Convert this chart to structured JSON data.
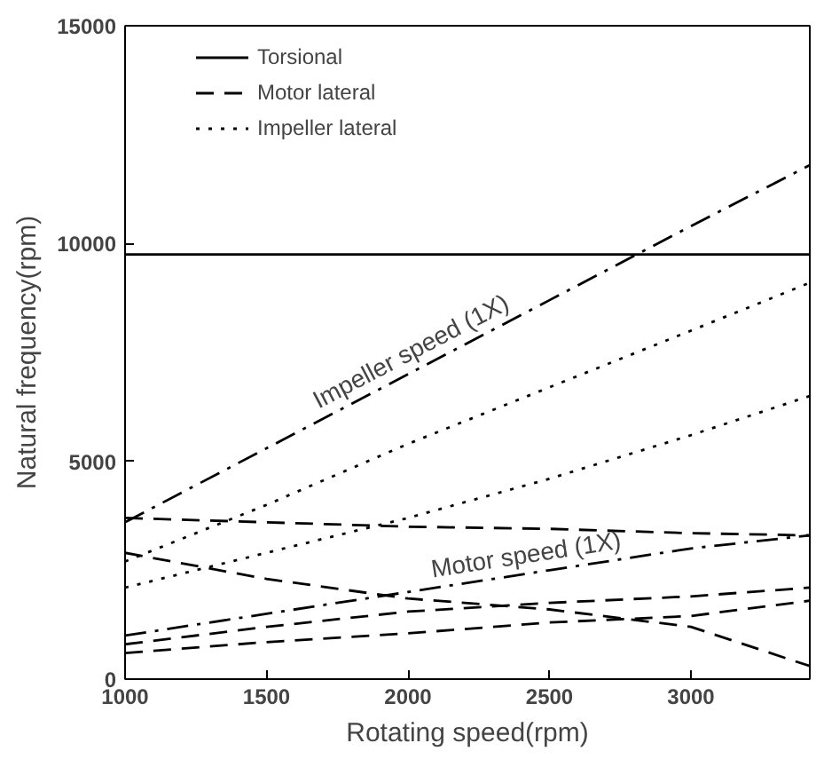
{
  "chart_data": {
    "type": "line",
    "xlabel": "Rotating speed(rpm)",
    "ylabel": "Natural frequency(rpm)",
    "x": [
      1000,
      1500,
      2000,
      2500,
      3000,
      3420
    ],
    "xlim": [
      1000,
      3420
    ],
    "ylim": [
      0,
      15000
    ],
    "xticks": [
      1000,
      1500,
      2000,
      2500,
      3000
    ],
    "yticks": [
      0,
      5000,
      10000,
      15000
    ],
    "grid": false,
    "legend": "top left",
    "marker": "none",
    "series": [
      {
        "name": "Torsional",
        "color": "#000000",
        "line_style": "solid",
        "values": [
          9750,
          9750,
          9750,
          9750,
          9750,
          9750
        ]
      },
      {
        "name": "Motor lateral",
        "color": "#000000",
        "line_style": "dashed",
        "values": [
          3700,
          3600,
          3500,
          3450,
          3350,
          3300
        ]
      },
      {
        "color": "#000000",
        "line_style": "dashed",
        "values": [
          2900,
          2300,
          1850,
          1600,
          1200,
          300
        ]
      },
      {
        "color": "#000000",
        "line_style": "dashed",
        "values": [
          800,
          1200,
          1550,
          1750,
          1900,
          2100
        ]
      },
      {
        "color": "#000000",
        "line_style": "dashed",
        "values": [
          600,
          850,
          1050,
          1300,
          1450,
          1800
        ]
      },
      {
        "name": "Impeller lateral",
        "color": "#000000",
        "line_style": "dotted",
        "values": [
          2700,
          4000,
          5400,
          6700,
          8000,
          9100
        ]
      },
      {
        "color": "#000000",
        "line_style": "dotted",
        "values": [
          2100,
          2900,
          3700,
          4600,
          5600,
          6500
        ]
      },
      {
        "name": "Impeller speed (1X)",
        "color": "#000000",
        "line_style": "dashdot",
        "values": [
          3600,
          5300,
          7000,
          8700,
          10400,
          11800
        ]
      },
      {
        "name": "Motor speed (1X)",
        "color": "#000000",
        "line_style": "dashdot",
        "values": [
          1000,
          1500,
          2000,
          2500,
          3000,
          3300
        ]
      }
    ]
  }
}
